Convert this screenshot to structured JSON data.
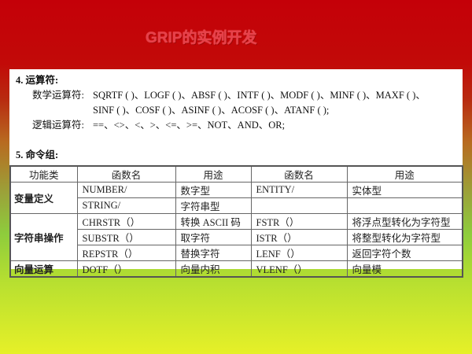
{
  "title": "GRIP的实例开发",
  "section4": {
    "heading": "4.  运算符:",
    "math_label": "数学运算符:",
    "math_line1": "SQRTF ( )、LOGF ( )、ABSF ( )、INTF ( )、MODF ( )、MINF ( )、MAXF ( )、",
    "math_line2": "SINF ( )、COSF ( )、ASINF ( )、ACOSF ( )、ATANF ( );",
    "logic_label": "逻辑运算符:",
    "logic_line": "==、<>、<、>、<=、>=、NOT、AND、OR;"
  },
  "section5": {
    "heading": "5.  命令组:"
  },
  "table": {
    "headers": [
      "功能类",
      "函数名",
      "用途",
      "函数名",
      "用途"
    ],
    "groups": [
      {
        "category": "变量定义",
        "rows": [
          [
            "NUMBER/",
            "数字型",
            "ENTITY/",
            "实体型"
          ],
          [
            "STRING/",
            "字符串型",
            "",
            ""
          ]
        ]
      },
      {
        "category": "字符串操作",
        "rows": [
          [
            "CHRSTR（）",
            "转换 ASCII 码",
            "FSTR（）",
            "将浮点型转化为字符型"
          ],
          [
            "SUBSTR（）",
            "取字符",
            "ISTR（）",
            "将整型转化为字符型"
          ],
          [
            "REPSTR（）",
            "替换字符",
            "LENF（）",
            "返回字符个数"
          ]
        ]
      },
      {
        "category": "向量运算",
        "rows": [
          [
            "DOTF（）",
            "向量内积",
            "VLENF（）",
            "向量模"
          ]
        ]
      }
    ]
  }
}
